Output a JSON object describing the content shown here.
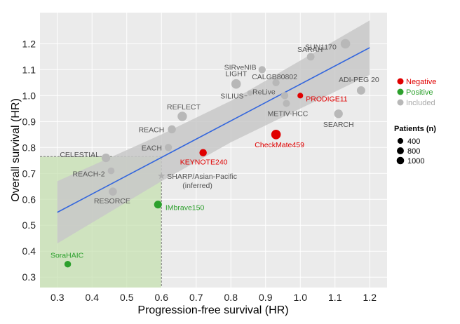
{
  "chart_data": {
    "type": "scatter",
    "xlabel": "Progression-free survival (HR)",
    "ylabel": "Overall survival (HR)",
    "xlim": [
      0.25,
      1.25
    ],
    "ylim": [
      0.26,
      1.32
    ],
    "x_ticks": [
      "0.3",
      "0.4",
      "0.5",
      "0.6",
      "0.7",
      "0.8",
      "0.9",
      "1.0",
      "1.1",
      "1.2"
    ],
    "y_ticks": [
      "0.3",
      "0.4",
      "0.5",
      "0.6",
      "0.7",
      "0.8",
      "0.9",
      "1.0",
      "1.1",
      "1.2"
    ],
    "grid": true,
    "background_color": "#ebebeb",
    "regression_line": {
      "x": [
        0.3,
        1.2
      ],
      "y": [
        0.55,
        1.185
      ],
      "color": "#3366dd"
    },
    "confidence_band": {
      "x": [
        0.3,
        0.6,
        0.8,
        1.2
      ],
      "upper": [
        0.67,
        0.85,
        0.98,
        1.29
      ],
      "lower": [
        0.43,
        0.67,
        0.82,
        1.08
      ],
      "color": "#c8c8c8"
    },
    "threshold_region": {
      "x_max": 0.6,
      "y_max": 0.765,
      "color": "#c5e0b0"
    },
    "colors": {
      "Negative": "#e00000",
      "Positive": "#2ca02c",
      "Included": "#b8b8b8"
    },
    "points": [
      {
        "label": "SUN1170",
        "x": 1.13,
        "y": 1.2,
        "n": 1000,
        "status": "Included"
      },
      {
        "label": "SARAH",
        "x": 1.03,
        "y": 1.15,
        "n": 450,
        "status": "Included"
      },
      {
        "label": "SIRveNIB",
        "x": 0.89,
        "y": 1.1,
        "n": 360,
        "status": "Included"
      },
      {
        "label": "CALGB80802",
        "x": 0.93,
        "y": 1.05,
        "n": 360,
        "status": "Included"
      },
      {
        "label": "LIGHT",
        "x": 0.815,
        "y": 1.045,
        "n": 1000,
        "status": "Included"
      },
      {
        "label": "ADI-PEG 20",
        "x": 1.175,
        "y": 1.02,
        "n": 640,
        "status": "Included"
      },
      {
        "label": "PRODIGE11",
        "x": 1.0,
        "y": 1.0,
        "n": 120,
        "status": "Negative"
      },
      {
        "label": "ReLive",
        "x": 0.955,
        "y": 1.0,
        "n": 400,
        "status": "Included"
      },
      {
        "label": "SILIUS",
        "x": 0.855,
        "y": 1.01,
        "n": 100,
        "status": "Included"
      },
      {
        "label": "METIV-HCC",
        "x": 0.96,
        "y": 0.97,
        "n": 340,
        "status": "Included"
      },
      {
        "label": "REFLECT",
        "x": 0.66,
        "y": 0.92,
        "n": 950,
        "status": "Included"
      },
      {
        "label": "SEARCH",
        "x": 1.11,
        "y": 0.93,
        "n": 720,
        "status": "Included"
      },
      {
        "label": "REACH",
        "x": 0.63,
        "y": 0.87,
        "n": 560,
        "status": "Included"
      },
      {
        "label": "CheckMate459",
        "x": 0.93,
        "y": 0.85,
        "n": 1000,
        "status": "Negative"
      },
      {
        "label": "EACH",
        "x": 0.62,
        "y": 0.8,
        "n": 370,
        "status": "Included"
      },
      {
        "label": "KEYNOTE240",
        "x": 0.72,
        "y": 0.78,
        "n": 400,
        "status": "Negative"
      },
      {
        "label": "CELESTIAL",
        "x": 0.44,
        "y": 0.76,
        "n": 700,
        "status": "Included"
      },
      {
        "label": "REACH-2",
        "x": 0.455,
        "y": 0.71,
        "n": 290,
        "status": "Included"
      },
      {
        "label": "SHARP/Asian-Pacific\n(inferred)",
        "x": 0.6,
        "y": 0.69,
        "n": 0,
        "status": "Included"
      },
      {
        "label": "RESORCE",
        "x": 0.46,
        "y": 0.63,
        "n": 570,
        "status": "Included"
      },
      {
        "label": "IMbrave150",
        "x": 0.59,
        "y": 0.58,
        "n": 500,
        "status": "Positive"
      },
      {
        "label": "SoraHAIC",
        "x": 0.33,
        "y": 0.35,
        "n": 250,
        "status": "Positive"
      }
    ],
    "legend": {
      "placement": "right",
      "status_entries": [
        "Negative",
        "Positive",
        "Included"
      ],
      "size_title": "Patients (n)",
      "size_entries": [
        {
          "label": "400",
          "n": 400
        },
        {
          "label": "800",
          "n": 800
        },
        {
          "label": "1000",
          "n": 1000
        }
      ]
    }
  }
}
